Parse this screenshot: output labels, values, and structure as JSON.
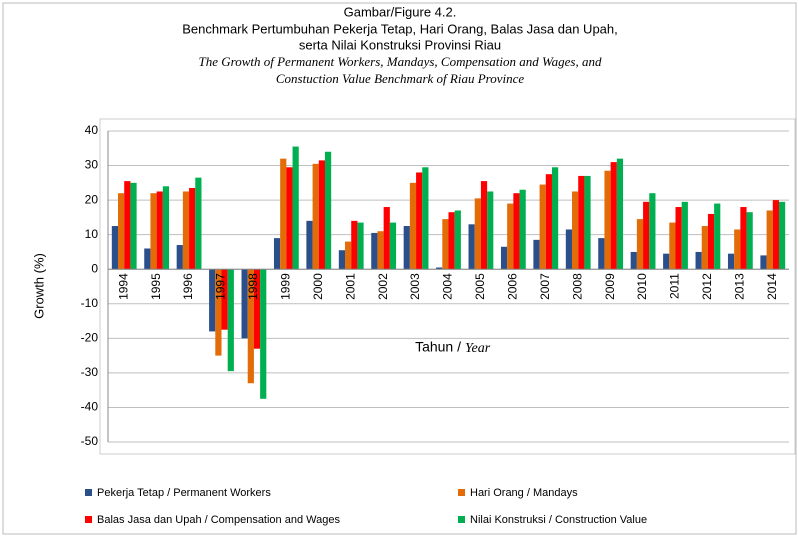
{
  "chart_data": {
    "type": "bar",
    "title": "Gambar/Figure 4.2.",
    "subtitle": "Benchmark Pertumbuhan Pekerja Tetap, Hari Orang, Balas Jasa dan Upah,",
    "subtitle2": "serta Nilai Konstruksi Provinsi Riau",
    "subtitle_en": "The Growth of Permanent Workers, Mandays, Compensation and Wages, and",
    "subtitle_en2": "Constuction Value Benchmark of Riau Province",
    "y_label": "Growth (%)",
    "x_label": "Tahun /",
    "x_label_en": "Year",
    "categories": [
      "1994",
      "1995",
      "1996",
      "1997",
      "1998",
      "1999",
      "2000",
      "2001",
      "2002",
      "2003",
      "2004",
      "2005",
      "2006",
      "2007",
      "2008",
      "2009",
      "2010",
      "2011",
      "2012",
      "2013",
      "2014"
    ],
    "series": [
      {
        "name": "Pekerja Tetap / Permanent Workers",
        "color": "#2a4f8a",
        "values": [
          12.5,
          6,
          7,
          -18,
          -20,
          9,
          14,
          5.5,
          10.5,
          12.5,
          0.5,
          13,
          6.5,
          8.5,
          11.5,
          9,
          5,
          4.5,
          5,
          4.5,
          4
        ]
      },
      {
        "name": "Hari Orang / Mandays",
        "color": "#e36c09",
        "values": [
          22,
          22,
          22.5,
          -25,
          -33,
          32,
          30.5,
          8,
          11,
          25,
          14.5,
          20.5,
          19,
          24.5,
          22.5,
          28.5,
          14.5,
          13.5,
          12.5,
          11.5,
          17
        ]
      },
      {
        "name": "Balas Jasa dan Upah / Compensation and Wages",
        "color": "#ff0000",
        "values": [
          25.5,
          22.5,
          23.5,
          -17.5,
          -23,
          29.5,
          31.5,
          14,
          18,
          28,
          16.5,
          25.5,
          22,
          27.5,
          27,
          31,
          19.5,
          18,
          16,
          18,
          20
        ]
      },
      {
        "name": "Nilai Konstruksi / Construction Value",
        "color": "#00b050",
        "values": [
          25,
          24,
          26.5,
          -29.5,
          -37.5,
          35.5,
          34,
          13.5,
          13.5,
          29.5,
          17,
          22.5,
          23,
          29.5,
          27,
          32,
          22,
          19.5,
          19,
          16.5,
          19.5
        ]
      }
    ],
    "ylim": [
      -50,
      40
    ],
    "yticks": [
      -50,
      -40,
      -30,
      -20,
      -10,
      0,
      10,
      20,
      30,
      40
    ],
    "grid": true,
    "legend": "bottom"
  }
}
